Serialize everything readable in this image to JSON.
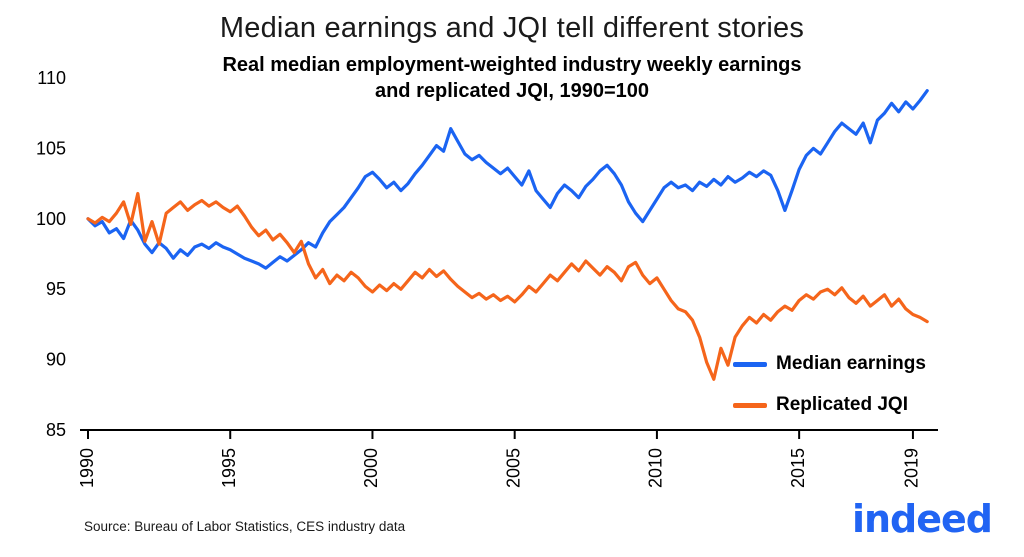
{
  "title": "Median earnings and JQI tell different stories",
  "subtitle_line1": "Real median employment-weighted industry weekly earnings",
  "subtitle_line2": "and replicated JQI, 1990=100",
  "source": "Source: Bureau of Labor Statistics, CES industry data",
  "logo": {
    "text": "indeed",
    "color": "#2164f3"
  },
  "colors": {
    "median_earnings": "#1b64f2",
    "replicated_jqi": "#f5651b",
    "axis": "#000000"
  },
  "legend": {
    "items": [
      {
        "label": "Median earnings"
      },
      {
        "label": "Replicated JQI"
      }
    ]
  },
  "chart_data": {
    "type": "line",
    "title": "Median earnings and JQI tell different stories",
    "xlabel": "",
    "ylabel": "",
    "xlim": [
      1990,
      2019.6
    ],
    "ylim": [
      85,
      110
    ],
    "y_ticks": [
      85,
      90,
      95,
      100,
      105,
      110
    ],
    "x_ticks": [
      1990,
      1995,
      2000,
      2005,
      2010,
      2015,
      2019
    ],
    "grid": false,
    "legend_position": "inside-lower-right",
    "x": [
      1990,
      1990.25,
      1990.5,
      1990.75,
      1991,
      1991.25,
      1991.5,
      1991.75,
      1992,
      1992.25,
      1992.5,
      1992.75,
      1993,
      1993.25,
      1993.5,
      1993.75,
      1994,
      1994.25,
      1994.5,
      1994.75,
      1995,
      1995.25,
      1995.5,
      1995.75,
      1996,
      1996.25,
      1996.5,
      1996.75,
      1997,
      1997.25,
      1997.5,
      1997.75,
      1998,
      1998.25,
      1998.5,
      1998.75,
      1999,
      1999.25,
      1999.5,
      1999.75,
      2000,
      2000.25,
      2000.5,
      2000.75,
      2001,
      2001.25,
      2001.5,
      2001.75,
      2002,
      2002.25,
      2002.5,
      2002.75,
      2003,
      2003.25,
      2003.5,
      2003.75,
      2004,
      2004.25,
      2004.5,
      2004.75,
      2005,
      2005.25,
      2005.5,
      2005.75,
      2006,
      2006.25,
      2006.5,
      2006.75,
      2007,
      2007.25,
      2007.5,
      2007.75,
      2008,
      2008.25,
      2008.5,
      2008.75,
      2009,
      2009.25,
      2009.5,
      2009.75,
      2010,
      2010.25,
      2010.5,
      2010.75,
      2011,
      2011.25,
      2011.5,
      2011.75,
      2012,
      2012.25,
      2012.5,
      2012.75,
      2013,
      2013.25,
      2013.5,
      2013.75,
      2014,
      2014.25,
      2014.5,
      2014.75,
      2015,
      2015.25,
      2015.5,
      2015.75,
      2016,
      2016.25,
      2016.5,
      2016.75,
      2017,
      2017.25,
      2017.5,
      2017.75,
      2018,
      2018.25,
      2018.5,
      2018.75,
      2019,
      2019.25,
      2019.5
    ],
    "series": [
      {
        "name": "Median earnings",
        "color": "#1b64f2",
        "values": [
          100.0,
          99.5,
          99.8,
          99.0,
          99.3,
          98.6,
          99.9,
          99.2,
          98.2,
          97.6,
          98.3,
          97.9,
          97.2,
          97.8,
          97.4,
          98.0,
          98.2,
          97.9,
          98.3,
          98.0,
          97.8,
          97.5,
          97.2,
          97.0,
          96.8,
          96.5,
          96.9,
          97.3,
          97.0,
          97.4,
          97.8,
          98.3,
          98.0,
          99.0,
          99.8,
          100.3,
          100.8,
          101.5,
          102.2,
          103.0,
          103.3,
          102.8,
          102.2,
          102.6,
          102.0,
          102.5,
          103.2,
          103.8,
          104.5,
          105.2,
          104.8,
          106.4,
          105.5,
          104.6,
          104.2,
          104.5,
          104.0,
          103.6,
          103.2,
          103.6,
          103.0,
          102.4,
          103.4,
          102.0,
          101.4,
          100.8,
          101.8,
          102.4,
          102.0,
          101.5,
          102.3,
          102.8,
          103.4,
          103.8,
          103.2,
          102.4,
          101.2,
          100.4,
          99.8,
          100.6,
          101.4,
          102.2,
          102.6,
          102.2,
          102.4,
          102.0,
          102.6,
          102.3,
          102.8,
          102.4,
          103.0,
          102.6,
          102.9,
          103.3,
          103.0,
          103.4,
          103.1,
          102.0,
          100.6,
          102.0,
          103.5,
          104.5,
          105.0,
          104.6,
          105.4,
          106.2,
          106.8,
          106.4,
          106.0,
          106.8,
          105.4,
          107.0,
          107.5,
          108.2,
          107.6,
          108.3,
          107.8,
          108.4,
          109.1
        ]
      },
      {
        "name": "Replicated JQI",
        "color": "#f5651b",
        "values": [
          100.0,
          99.7,
          100.1,
          99.8,
          100.4,
          101.2,
          99.6,
          101.8,
          98.4,
          99.8,
          98.2,
          100.4,
          100.8,
          101.2,
          100.6,
          101.0,
          101.3,
          100.9,
          101.2,
          100.8,
          100.5,
          100.9,
          100.2,
          99.4,
          98.8,
          99.2,
          98.5,
          98.9,
          98.3,
          97.6,
          98.4,
          96.8,
          95.8,
          96.4,
          95.4,
          96.0,
          95.6,
          96.2,
          95.8,
          95.2,
          94.8,
          95.3,
          94.9,
          95.4,
          95.0,
          95.6,
          96.2,
          95.8,
          96.4,
          95.9,
          96.3,
          95.7,
          95.2,
          94.8,
          94.4,
          94.7,
          94.3,
          94.6,
          94.2,
          94.5,
          94.1,
          94.6,
          95.2,
          94.8,
          95.4,
          96.0,
          95.6,
          96.2,
          96.8,
          96.3,
          97.0,
          96.5,
          96.0,
          96.6,
          96.2,
          95.6,
          96.6,
          96.9,
          96.0,
          95.4,
          95.8,
          95.0,
          94.2,
          93.6,
          93.4,
          92.8,
          91.6,
          89.8,
          88.6,
          90.8,
          89.6,
          91.6,
          92.4,
          93.0,
          92.6,
          93.2,
          92.8,
          93.4,
          93.8,
          93.5,
          94.2,
          94.6,
          94.3,
          94.8,
          95.0,
          94.6,
          95.1,
          94.4,
          94.0,
          94.5,
          93.8,
          94.2,
          94.6,
          93.8,
          94.3,
          93.6,
          93.2,
          93.0,
          92.7
        ]
      }
    ]
  }
}
